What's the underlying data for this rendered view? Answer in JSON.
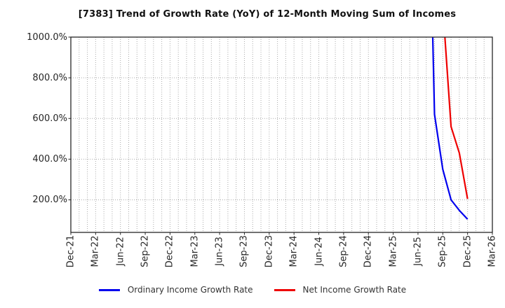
{
  "chart_data": {
    "type": "line",
    "title": "[7383]  Trend of Growth Rate (YoY) of 12-Month Moving Sum of Incomes",
    "x_axis": {
      "tick_labels": [
        "Dec-21",
        "Mar-22",
        "Jun-22",
        "Sep-22",
        "Dec-22",
        "Mar-23",
        "Jun-23",
        "Sep-23",
        "Dec-23",
        "Mar-24",
        "Jun-24",
        "Sep-24",
        "Dec-24",
        "Mar-25",
        "Jun-25",
        "Sep-25",
        "Dec-25",
        "Mar-26"
      ],
      "months_between_labeled_ticks": 3,
      "total_month_intervals": 51,
      "minor_grid": "monthly"
    },
    "y_axis": {
      "tick_values": [
        1000,
        800,
        600,
        400,
        200
      ],
      "tick_labels": [
        "1000.0%",
        "800.0%",
        "600.0%",
        "400.0%",
        "200.0%"
      ],
      "ylim": [
        40,
        1000
      ],
      "unit": "%"
    },
    "grid": {
      "visible": true,
      "line_style": "dotted",
      "color": "#aaaaaa"
    },
    "series": [
      {
        "name": "Ordinary Income Growth Rate",
        "color": "#0000ee",
        "points": [
          {
            "month": "Jul-25",
            "month_index": 43,
            "value_pct": 2400,
            "off_scale_top": true
          },
          {
            "month": "Aug-25",
            "month_index": 44,
            "value_pct": 620
          },
          {
            "month": "Sep-25",
            "month_index": 45,
            "value_pct": 350
          },
          {
            "month": "Oct-25",
            "month_index": 46,
            "value_pct": 200
          },
          {
            "month": "Nov-25",
            "month_index": 47,
            "value_pct": 148
          },
          {
            "month": "Dec-25",
            "month_index": 48,
            "value_pct": 105
          }
        ]
      },
      {
        "name": "Net Income Growth Rate",
        "color": "#ee0000",
        "points": [
          {
            "month": "Aug-25",
            "month_index": 44,
            "value_pct": 2500,
            "off_scale_top": true
          },
          {
            "month": "Sep-25",
            "month_index": 45,
            "value_pct": 1150,
            "off_scale_top": true
          },
          {
            "month": "Oct-25",
            "month_index": 46,
            "value_pct": 560
          },
          {
            "month": "Nov-25",
            "month_index": 47,
            "value_pct": 430
          },
          {
            "month": "Dec-25",
            "month_index": 48,
            "value_pct": 205
          }
        ]
      }
    ],
    "legend": {
      "position": "bottom-center",
      "entries": [
        {
          "label": "Ordinary Income Growth Rate",
          "color": "#0000ee"
        },
        {
          "label": "Net Income Growth Rate",
          "color": "#ee0000"
        }
      ]
    },
    "colors": {
      "background": "#ffffff",
      "axis_border": "#262626",
      "grid": "#aaaaaa",
      "tick_label": "#262626",
      "legend_text": "#333333",
      "title_text": "#111111"
    }
  }
}
